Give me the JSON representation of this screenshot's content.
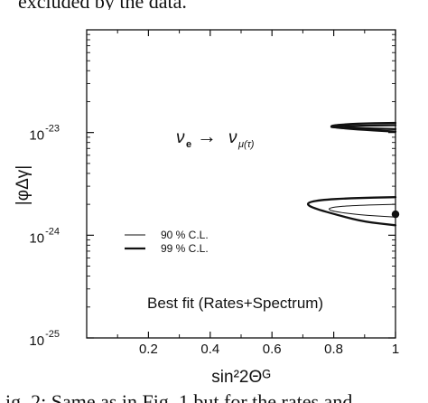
{
  "caption_fragments": {
    "top": "excluded by the data.",
    "bottom": "ig. 2: Same as in Fig. 1 but for the rates and"
  },
  "chart_data": {
    "type": "contour",
    "title": "",
    "xlabel": "sin²2Θᴳ",
    "ylabel": "|φΔγ|",
    "xlim": [
      0,
      1
    ],
    "ylim": [
      1e-25,
      1e-22
    ],
    "yscale": "log",
    "x_tick_labels": [
      "0.2",
      "0.4",
      "0.6",
      "0.8",
      "1"
    ],
    "x_ticks": [
      0.2,
      0.4,
      0.6,
      0.8,
      1.0
    ],
    "y_tick_labels": [
      {
        "base": "10",
        "exp": "-25",
        "value": 1e-25
      },
      {
        "base": "10",
        "exp": "-24",
        "value": 1e-24
      },
      {
        "base": "10",
        "exp": "-23",
        "value": 1e-23
      }
    ],
    "annotations": {
      "channel": {
        "nu_e": "ν",
        "nu_e_sub": "e",
        "arrow": "→",
        "nu_mu": "ν",
        "nu_mu_sub": "μ(τ)"
      },
      "best_fit_label": "Best fit (Rates+Spectrum)"
    },
    "legend": {
      "placement": "left",
      "entries": [
        {
          "label": "90 % C.L.",
          "style": "thin"
        },
        {
          "label": "99 % C.L.",
          "style": "thick"
        }
      ]
    },
    "series": [
      {
        "label": "90 % C.L.",
        "style": "thin",
        "points": [
          [
            1.0,
            2e-24
          ],
          [
            0.86,
            1.95e-24
          ],
          [
            0.8,
            1.88e-24
          ],
          [
            0.78,
            1.8e-24
          ],
          [
            0.8,
            1.7e-24
          ],
          [
            0.88,
            1.58e-24
          ],
          [
            1.0,
            1.5e-24
          ]
        ]
      },
      {
        "label": "99 % C.L.",
        "style": "thick",
        "points": [
          [
            1.0,
            2.35e-24
          ],
          [
            0.86,
            2.3e-24
          ],
          [
            0.75,
            2.2e-24
          ],
          [
            0.71,
            2.05e-24
          ],
          [
            0.73,
            1.85e-24
          ],
          [
            0.82,
            1.55e-24
          ],
          [
            0.9,
            1.35e-24
          ],
          [
            1.0,
            1.25e-24
          ]
        ]
      },
      {
        "label": "99 % C.L.",
        "style": "thick",
        "points": [
          [
            1.0,
            1.18e-23
          ],
          [
            0.86,
            1.16e-23
          ],
          [
            0.77,
            1.135e-23
          ],
          [
            0.86,
            1.105e-23
          ],
          [
            1.0,
            1.08e-23
          ]
        ]
      },
      {
        "label": "99 % C.L.",
        "style": "thick",
        "points": [
          [
            1.0,
            1.24e-23
          ],
          [
            0.86,
            1.22e-23
          ],
          [
            0.77,
            1.15e-23
          ],
          [
            0.86,
            1.08e-23
          ],
          [
            1.0,
            1.02e-23
          ]
        ]
      }
    ],
    "best_fit_point": {
      "x": 1.0,
      "y": 1.6e-24
    }
  }
}
